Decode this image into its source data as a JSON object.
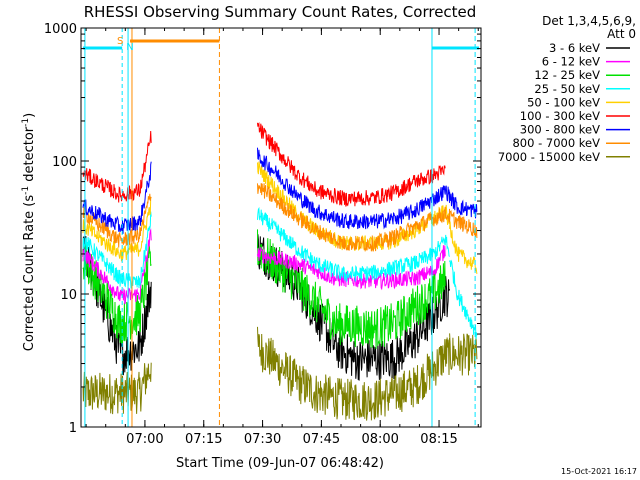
{
  "chart_data": {
    "type": "line",
    "title": "RHESSI Observing Summary Count Rates, Corrected",
    "xlabel": "Start Time (09-Jun-07 06:48:42)",
    "ylabel": "Corrected Count Rate (s⁻¹ detector⁻¹)",
    "ylabel_main": "Corrected Count Rate (s",
    "ylabel_sup1": "-1",
    "ylabel_mid": " detector",
    "ylabel_sup2": "-1",
    "ylabel_end": ")",
    "yscale": "log",
    "xlim_minutes": [
      -5.0,
      97.0
    ],
    "ylim": [
      1,
      1000
    ],
    "xticks": [
      {
        "minute": 11.3,
        "label": "07:00"
      },
      {
        "minute": 26.3,
        "label": "07:15"
      },
      {
        "minute": 41.3,
        "label": "07:30"
      },
      {
        "minute": 56.3,
        "label": "07:45"
      },
      {
        "minute": 71.3,
        "label": "08:00"
      },
      {
        "minute": 86.3,
        "label": "08:15"
      }
    ],
    "yticks": [
      {
        "value": 1,
        "label": "1"
      },
      {
        "value": 10,
        "label": "10"
      },
      {
        "value": 100,
        "label": "100"
      },
      {
        "value": 1000,
        "label": "1000"
      }
    ],
    "legend_header": [
      "Det 1,3,4,5,6,9,",
      "Att 0"
    ],
    "series": [
      {
        "name": "3 - 6 keV",
        "color": "#000000"
      },
      {
        "name": "6 - 12 keV",
        "color": "#ff00ff"
      },
      {
        "name": "12 - 25 keV",
        "color": "#00e000"
      },
      {
        "name": "25 - 50 keV",
        "color": "#00ffff"
      },
      {
        "name": "50 - 100 keV",
        "color": "#ffd000"
      },
      {
        "name": "100 - 300 keV",
        "color": "#ff0000"
      },
      {
        "name": "300 - 800 keV",
        "color": "#0000ff"
      },
      {
        "name": "800 - 7000 keV",
        "color": "#ff8c00"
      },
      {
        "name": "7000 - 15000 keV",
        "color": "#808000"
      }
    ],
    "keyframes": {
      "black": [
        [
          -4,
          20
        ],
        [
          5,
          3.5
        ],
        [
          10,
          4
        ],
        [
          13,
          12
        ],
        [
          40,
          22
        ],
        [
          50,
          12
        ],
        [
          55,
          7
        ],
        [
          60,
          4
        ],
        [
          65,
          3.2
        ],
        [
          75,
          3.3
        ],
        [
          80,
          4.5
        ],
        [
          85,
          7
        ],
        [
          88,
          10
        ],
        [
          89,
          9
        ]
      ],
      "magenta": [
        [
          -4,
          20
        ],
        [
          5,
          9.5
        ],
        [
          10,
          10
        ],
        [
          13,
          30
        ],
        [
          40,
          20
        ],
        [
          50,
          17
        ],
        [
          55,
          15
        ],
        [
          60,
          13
        ],
        [
          70,
          12.5
        ],
        [
          80,
          13
        ],
        [
          85,
          15
        ],
        [
          88,
          22
        ]
      ],
      "green": [
        [
          -4,
          18
        ],
        [
          5,
          6
        ],
        [
          10,
          7
        ],
        [
          13,
          20
        ],
        [
          40,
          22
        ],
        [
          50,
          12
        ],
        [
          55,
          8.5
        ],
        [
          60,
          6
        ],
        [
          70,
          5.5
        ],
        [
          75,
          6
        ],
        [
          80,
          8
        ],
        [
          85,
          10
        ],
        [
          88,
          13
        ]
      ],
      "cyan": [
        [
          -4,
          25
        ],
        [
          5,
          13
        ],
        [
          10,
          12
        ],
        [
          13,
          40
        ],
        [
          40,
          40
        ],
        [
          45,
          30
        ],
        [
          50,
          22
        ],
        [
          55,
          17
        ],
        [
          62,
          14
        ],
        [
          70,
          14.5
        ],
        [
          80,
          17
        ],
        [
          85,
          20
        ],
        [
          88,
          26
        ],
        [
          91,
          10
        ],
        [
          96,
          5
        ]
      ],
      "yellow": [
        [
          -4,
          32
        ],
        [
          5,
          20
        ],
        [
          10,
          22
        ],
        [
          13,
          50
        ],
        [
          40,
          90
        ],
        [
          45,
          60
        ],
        [
          50,
          40
        ],
        [
          55,
          30
        ],
        [
          62,
          24
        ],
        [
          70,
          24
        ],
        [
          75,
          25
        ],
        [
          80,
          30
        ],
        [
          85,
          37
        ],
        [
          88,
          42
        ],
        [
          91,
          20
        ],
        [
          96,
          16
        ]
      ],
      "red": [
        [
          -4,
          80
        ],
        [
          5,
          55
        ],
        [
          10,
          60
        ],
        [
          13,
          160
        ],
        [
          40,
          180
        ],
        [
          45,
          120
        ],
        [
          50,
          80
        ],
        [
          55,
          60
        ],
        [
          62,
          52
        ],
        [
          70,
          53
        ],
        [
          75,
          58
        ],
        [
          80,
          70
        ],
        [
          85,
          78
        ],
        [
          88,
          85
        ]
      ],
      "blue": [
        [
          -4,
          45
        ],
        [
          5,
          32
        ],
        [
          10,
          35
        ],
        [
          13,
          90
        ],
        [
          40,
          110
        ],
        [
          45,
          80
        ],
        [
          50,
          55
        ],
        [
          55,
          42
        ],
        [
          62,
          35
        ],
        [
          70,
          35
        ],
        [
          75,
          37
        ],
        [
          80,
          42
        ],
        [
          85,
          52
        ],
        [
          88,
          60
        ],
        [
          91,
          45
        ],
        [
          96,
          42
        ]
      ],
      "orange": [
        [
          -4,
          40
        ],
        [
          5,
          25
        ],
        [
          10,
          28
        ],
        [
          13,
          60
        ],
        [
          40,
          65
        ],
        [
          45,
          50
        ],
        [
          50,
          38
        ],
        [
          55,
          30
        ],
        [
          62,
          24
        ],
        [
          70,
          24
        ],
        [
          75,
          27
        ],
        [
          80,
          32
        ],
        [
          85,
          37
        ],
        [
          88,
          40
        ],
        [
          91,
          35
        ],
        [
          96,
          30
        ]
      ],
      "olive": [
        [
          -4,
          1.8
        ],
        [
          5,
          1.8
        ],
        [
          10,
          1.8
        ],
        [
          13,
          3
        ],
        [
          40,
          4
        ],
        [
          45,
          3
        ],
        [
          50,
          2.2
        ],
        [
          55,
          1.8
        ],
        [
          62,
          1.6
        ],
        [
          70,
          1.6
        ],
        [
          80,
          2
        ],
        [
          85,
          2.8
        ],
        [
          88,
          3.5
        ],
        [
          96,
          3.5
        ]
      ]
    },
    "state_labels": {
      "s_letter": "S",
      "n_letter": "N"
    },
    "timestamp": "15-Oct-2021 16:17"
  }
}
